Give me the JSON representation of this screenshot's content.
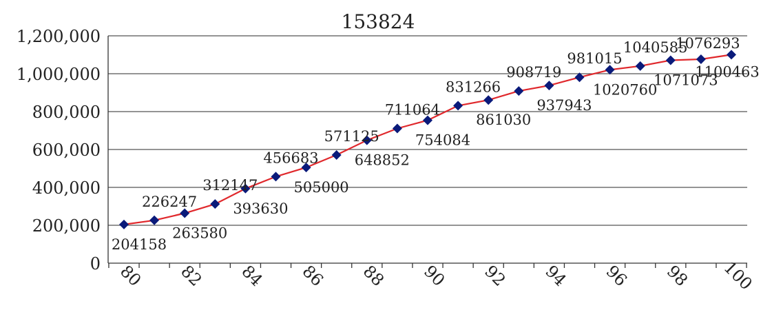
{
  "chart_data": {
    "type": "line",
    "title": "153824",
    "xlabel": "",
    "ylabel": "",
    "x": [
      80,
      81,
      82,
      83,
      84,
      85,
      86,
      87,
      88,
      89,
      90,
      91,
      92,
      93,
      94,
      95,
      96,
      97,
      98,
      99,
      100
    ],
    "x_tick_labels": [
      "80",
      "82",
      "84",
      "86",
      "88",
      "90",
      "92",
      "94",
      "96",
      "98",
      "100"
    ],
    "y_tick_labels": [
      "0",
      "200,000",
      "400,000",
      "600,000",
      "800,000",
      "1,000,000",
      "1,200,000"
    ],
    "ylim": [
      0,
      1200000
    ],
    "grid": "horizontal",
    "legend": "none",
    "series": [
      {
        "values": [
          204158,
          226247,
          263580,
          312147,
          393630,
          456683,
          505000,
          571125,
          648852,
          711064,
          754084,
          831266,
          861030,
          908719,
          937943,
          981015,
          1020760,
          1040585,
          1071073,
          1076293,
          1100463
        ],
        "data_labels": [
          "204158",
          "226247",
          "263580",
          "312147",
          "393630",
          "456683",
          "505000",
          "571125",
          "648852",
          "711064",
          "754084",
          "831266",
          "861030",
          "908719",
          "937943",
          "981015",
          "1020760",
          "1040585",
          "1071073",
          "1076293",
          "1100463"
        ]
      }
    ],
    "colors": {
      "line": "#e0282c",
      "marker": "#0a1a7a",
      "grid": "#555555",
      "axis": "#333333"
    }
  }
}
